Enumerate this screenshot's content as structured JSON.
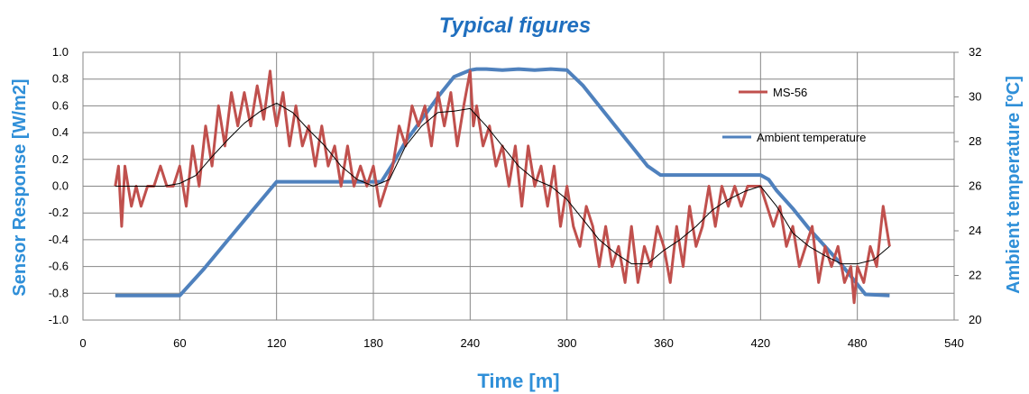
{
  "chart_data": {
    "type": "line",
    "title": "Typical figures",
    "xlabel": "Time [m]",
    "ylabel_left": "Sensor Response  [W/m2]",
    "ylabel_right": "Ambient temperature  [ºC]",
    "xlim": [
      0,
      540
    ],
    "ylim_left": [
      -1.0,
      1.0
    ],
    "ylim_right": [
      20,
      32
    ],
    "x_ticks": [
      "0",
      "60",
      "120",
      "180",
      "240",
      "300",
      "360",
      "420",
      "480",
      "540"
    ],
    "y_left_ticks": [
      "1.0",
      "0.8",
      "0.6",
      "0.4",
      "0.2",
      "0.0",
      "-0.2",
      "-0.4",
      "-0.6",
      "-0.8",
      "-1.0"
    ],
    "y_right_ticks": [
      "32",
      "30",
      "28",
      "26",
      "24",
      "22",
      "20"
    ],
    "grid": true,
    "legend_position": "top-right",
    "colors": {
      "sensor": "#c0504d",
      "temperature": "#4f81bd",
      "trend": "#000000",
      "title": "#1f6fbf",
      "axis_title": "#2f8fd8"
    },
    "series": [
      {
        "name": "MS-56",
        "axis": "left",
        "x": [
          20,
          22,
          24,
          26,
          28,
          30,
          33,
          36,
          40,
          44,
          48,
          52,
          56,
          60,
          64,
          68,
          72,
          76,
          80,
          84,
          88,
          92,
          96,
          100,
          104,
          108,
          112,
          116,
          118,
          120,
          124,
          128,
          132,
          136,
          140,
          144,
          148,
          152,
          156,
          160,
          164,
          168,
          172,
          176,
          180,
          184,
          188,
          192,
          196,
          200,
          204,
          208,
          212,
          216,
          220,
          224,
          228,
          232,
          236,
          240,
          242,
          244,
          248,
          252,
          256,
          260,
          264,
          268,
          272,
          276,
          280,
          284,
          288,
          292,
          296,
          300,
          304,
          308,
          312,
          316,
          320,
          324,
          328,
          332,
          336,
          340,
          344,
          348,
          352,
          356,
          360,
          364,
          368,
          372,
          376,
          380,
          384,
          388,
          392,
          396,
          400,
          404,
          408,
          412,
          416,
          420,
          424,
          428,
          432,
          436,
          440,
          444,
          448,
          452,
          456,
          460,
          464,
          468,
          472,
          476,
          478,
          480,
          484,
          488,
          492,
          496,
          500
        ],
        "values": [
          0.0,
          0.15,
          -0.3,
          0.15,
          0.0,
          -0.15,
          0.0,
          -0.15,
          0.0,
          0.0,
          0.15,
          0.0,
          0.0,
          0.15,
          -0.15,
          0.3,
          0.0,
          0.45,
          0.15,
          0.6,
          0.3,
          0.7,
          0.45,
          0.7,
          0.45,
          0.75,
          0.5,
          0.86,
          0.6,
          0.45,
          0.7,
          0.3,
          0.6,
          0.3,
          0.45,
          0.15,
          0.45,
          0.15,
          0.3,
          0.0,
          0.3,
          0.0,
          0.15,
          0.0,
          0.15,
          -0.15,
          0.0,
          0.15,
          0.45,
          0.3,
          0.6,
          0.45,
          0.6,
          0.3,
          0.7,
          0.45,
          0.7,
          0.3,
          0.6,
          0.86,
          0.45,
          0.6,
          0.3,
          0.45,
          0.15,
          0.3,
          0.0,
          0.3,
          -0.15,
          0.3,
          0.0,
          0.15,
          -0.15,
          0.15,
          -0.3,
          0.0,
          -0.3,
          -0.45,
          -0.15,
          -0.3,
          -0.6,
          -0.3,
          -0.6,
          -0.45,
          -0.72,
          -0.3,
          -0.72,
          -0.45,
          -0.6,
          -0.3,
          -0.45,
          -0.72,
          -0.3,
          -0.6,
          -0.15,
          -0.45,
          -0.3,
          0.0,
          -0.3,
          0.0,
          -0.15,
          0.0,
          -0.15,
          0.0,
          0.0,
          0.0,
          -0.15,
          -0.3,
          -0.15,
          -0.45,
          -0.3,
          -0.6,
          -0.45,
          -0.3,
          -0.72,
          -0.45,
          -0.6,
          -0.45,
          -0.72,
          -0.6,
          -0.87,
          -0.6,
          -0.72,
          -0.45,
          -0.6,
          -0.15,
          -0.45
        ]
      },
      {
        "axis": "left",
        "x": [
          20,
          30,
          40,
          50,
          60,
          70,
          80,
          90,
          100,
          110,
          120,
          130,
          140,
          150,
          160,
          170,
          180,
          190,
          200,
          210,
          220,
          230,
          240,
          250,
          260,
          270,
          280,
          290,
          300,
          310,
          320,
          330,
          340,
          350,
          360,
          370,
          380,
          390,
          400,
          410,
          420,
          430,
          440,
          450,
          460,
          470,
          480,
          490,
          500
        ],
        "values": [
          0.0,
          0.0,
          0.0,
          0.0,
          0.02,
          0.08,
          0.22,
          0.35,
          0.47,
          0.56,
          0.62,
          0.55,
          0.42,
          0.3,
          0.15,
          0.05,
          0.0,
          0.05,
          0.3,
          0.45,
          0.55,
          0.56,
          0.58,
          0.45,
          0.3,
          0.15,
          0.05,
          0.0,
          -0.1,
          -0.25,
          -0.4,
          -0.5,
          -0.58,
          -0.58,
          -0.48,
          -0.4,
          -0.3,
          -0.18,
          -0.1,
          -0.04,
          0.0,
          -0.15,
          -0.35,
          -0.45,
          -0.52,
          -0.58,
          -0.58,
          -0.55,
          -0.45
        ]
      },
      {
        "name": "Ambient temperature",
        "axis": "right",
        "x": [
          20,
          40,
          60,
          75,
          90,
          105,
          120,
          130,
          150,
          170,
          185,
          192,
          200,
          210,
          220,
          230,
          240,
          244,
          250,
          260,
          270,
          280,
          290,
          300,
          310,
          320,
          330,
          340,
          350,
          358,
          362,
          380,
          400,
          420,
          425,
          430,
          440,
          450,
          460,
          470,
          480,
          485,
          500
        ],
        "values": [
          21.1,
          21.1,
          21.1,
          22.3,
          23.6,
          24.9,
          26.2,
          26.2,
          26.2,
          26.2,
          26.2,
          27.0,
          28.0,
          29.0,
          30.0,
          30.9,
          31.2,
          31.25,
          31.25,
          31.2,
          31.25,
          31.2,
          31.25,
          31.2,
          30.5,
          29.6,
          28.7,
          27.8,
          26.9,
          26.5,
          26.5,
          26.5,
          26.5,
          26.5,
          26.3,
          25.8,
          25.0,
          24.1,
          23.3,
          22.5,
          21.6,
          21.15,
          21.1
        ]
      }
    ],
    "legend": [
      {
        "label": "MS-56",
        "color": "#c0504d"
      },
      {
        "label": "Ambient temperature",
        "color": "#4f81bd"
      }
    ]
  }
}
